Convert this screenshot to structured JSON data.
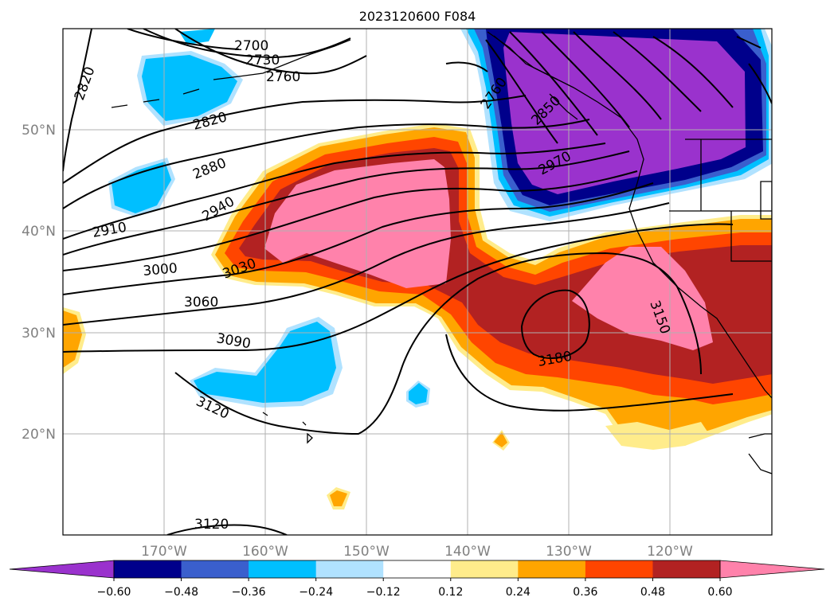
{
  "title": "2023120600 F084",
  "lat_labels": [
    "50°N",
    "40°N",
    "30°N",
    "20°N"
  ],
  "lon_labels": [
    "170°W",
    "160°W",
    "150°W",
    "140°W",
    "130°W",
    "120°W"
  ],
  "contour_labels": [
    "2700",
    "2730",
    "2760",
    "2820",
    "2820",
    "2880",
    "2940",
    "2910",
    "3000",
    "3030",
    "3060",
    "3090",
    "3120",
    "3120",
    "2760",
    "2850",
    "2970",
    "3180",
    "3150"
  ],
  "colorbar": {
    "ticks": [
      "−0.60",
      "−0.48",
      "−0.36",
      "−0.24",
      "−0.12",
      "0.12",
      "0.24",
      "0.36",
      "0.48",
      "0.60"
    ],
    "colors": [
      "#9a32cd",
      "#00008b",
      "#3a5fcd",
      "#00bfff",
      "#b0e2ff",
      "#ffffff",
      "#ffec8b",
      "#ffa500",
      "#ff4500",
      "#b22222",
      "#ff82ab"
    ]
  },
  "colors": {
    "purple": "#9a32cd",
    "navy": "#00008b",
    "royal": "#3a5fcd",
    "sky": "#00bfff",
    "lightsky": "#b0e2ff",
    "lightyellow": "#ffec8b",
    "orange": "#ffa500",
    "orangered": "#ff4500",
    "firebrick": "#b22222",
    "pink": "#ff82ab"
  }
}
